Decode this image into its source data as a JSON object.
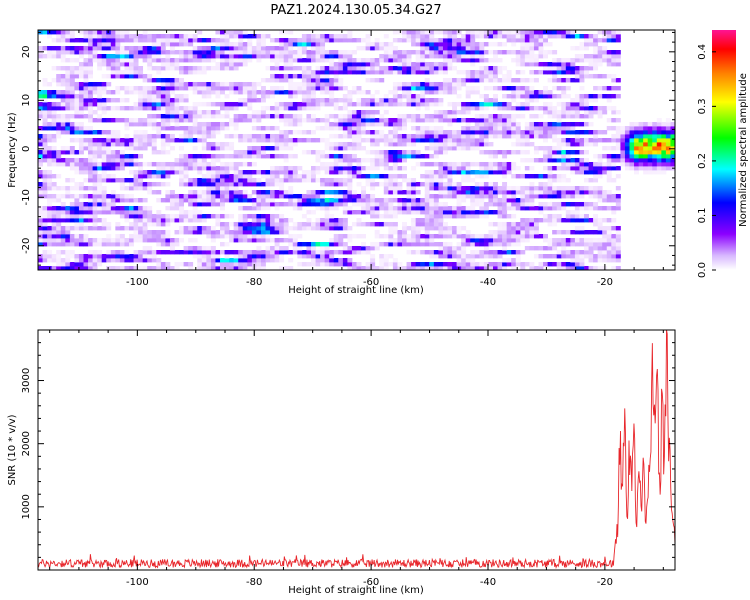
{
  "title": "PAZ1.2024.130.05.34.G27",
  "colors": {
    "spectrum_low": "#f6e8ff",
    "spectrum_mid": "#8a2be2",
    "snr_line": "#e8262b"
  },
  "chart_data": [
    {
      "type": "heatmap",
      "xlabel": "Height of straight line (km)",
      "ylabel": "Frequency (Hz)",
      "xlim": [
        -117,
        -8
      ],
      "ylim": [
        -25,
        24.5
      ],
      "xticks": [
        -100,
        -80,
        -60,
        -40,
        -20
      ],
      "yticks": [
        -20,
        -10,
        0,
        10,
        20
      ],
      "colorbar": {
        "label": "Normalized spectral amplitude",
        "range": [
          0,
          0.44
        ],
        "ticks": [
          "0.0",
          "0.1",
          "0.2",
          "0.3",
          "0.4"
        ],
        "tick_values": [
          0,
          0.1,
          0.2,
          0.3,
          0.4
        ],
        "colormap": [
          "#ffffff",
          "#8b00ff",
          "#0000ff",
          "#00ffff",
          "#00ff00",
          "#ffff00",
          "#ff8000",
          "#ff0000",
          "#ff1493"
        ]
      },
      "noise_region": {
        "x_range": [
          -117,
          -17.5
        ],
        "typical_value": 0.06
      },
      "signal_region": {
        "x_range": [
          -17.5,
          -8
        ],
        "frequency_center": 0.5,
        "frequency_span": [
          -5,
          5
        ],
        "peak_value": 0.42
      },
      "grid": false
    },
    {
      "type": "line",
      "xlabel": "Height of straight line (km)",
      "ylabel": "SNR (10 * v/v)",
      "xlim": [
        -117,
        -8
      ],
      "ylim": [
        0,
        3800
      ],
      "xticks": [
        -100,
        -80,
        -60,
        -40,
        -20
      ],
      "yticks": [
        1000,
        2000,
        3000
      ],
      "series": [
        {
          "points": [
            [
              -117,
              90
            ],
            [
              -114,
              160
            ],
            [
              -112,
              60
            ],
            [
              -110,
              110
            ],
            [
              -108,
              70
            ],
            [
              -106,
              150
            ],
            [
              -104,
              60
            ],
            [
              -100,
              120
            ],
            [
              -96,
              80
            ],
            [
              -92,
              140
            ],
            [
              -88,
              60
            ],
            [
              -84,
              110
            ],
            [
              -80,
              90
            ],
            [
              -76,
              130
            ],
            [
              -72,
              70
            ],
            [
              -69,
              260
            ],
            [
              -66,
              90
            ],
            [
              -62,
              140
            ],
            [
              -58,
              70
            ],
            [
              -54,
              120
            ],
            [
              -50,
              80
            ],
            [
              -46,
              150
            ],
            [
              -42,
              60
            ],
            [
              -38,
              130
            ],
            [
              -34,
              80
            ],
            [
              -30,
              120
            ],
            [
              -26,
              70
            ],
            [
              -22,
              140
            ],
            [
              -19.5,
              90
            ],
            [
              -18.5,
              250
            ],
            [
              -17.8,
              700
            ],
            [
              -17.4,
              2400
            ],
            [
              -17.0,
              1200
            ],
            [
              -16.6,
              2600
            ],
            [
              -16.2,
              800
            ],
            [
              -15.8,
              2200
            ],
            [
              -15.4,
              1400
            ],
            [
              -15.0,
              2300
            ],
            [
              -14.6,
              600
            ],
            [
              -14.2,
              1800
            ],
            [
              -13.8,
              900
            ],
            [
              -13.4,
              2400
            ],
            [
              -13.0,
              700
            ],
            [
              -12.6,
              1400
            ],
            [
              -12.2,
              2000
            ],
            [
              -11.8,
              3500
            ],
            [
              -11.4,
              2000
            ],
            [
              -11.0,
              3000
            ],
            [
              -10.6,
              1000
            ],
            [
              -10.2,
              3200
            ],
            [
              -9.8,
              1500
            ],
            [
              -9.5,
              3800
            ],
            [
              -9.2,
              2600
            ],
            [
              -8.9,
              2000
            ],
            [
              -8.6,
              900
            ],
            [
              -8.3,
              800
            ],
            [
              -8.0,
              500
            ]
          ]
        }
      ],
      "grid": false
    }
  ]
}
